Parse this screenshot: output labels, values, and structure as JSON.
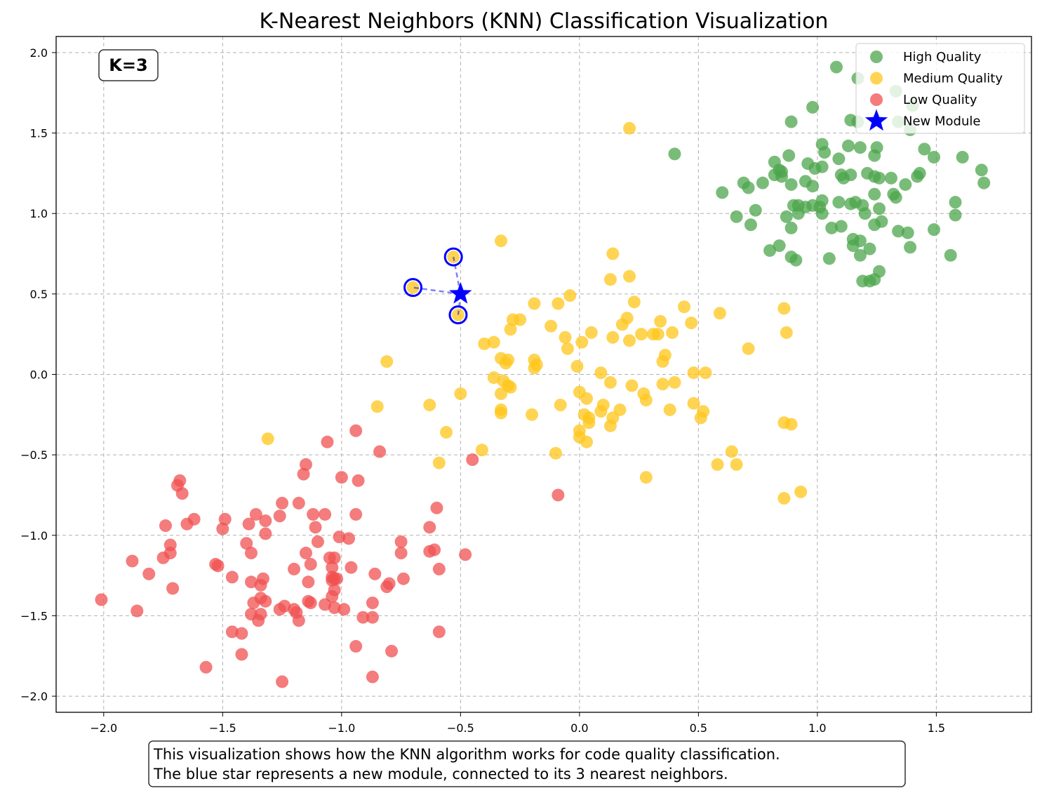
{
  "chart_data": {
    "type": "scatter",
    "title": "K-Nearest Neighbors (KNN) Classification Visualization",
    "xlabel": "",
    "ylabel": "",
    "xlim": [
      -2.2,
      1.9
    ],
    "ylim": [
      -2.1,
      2.1
    ],
    "xticks": [
      -2.0,
      -1.5,
      -1.0,
      -0.5,
      0.0,
      0.5,
      1.0,
      1.5
    ],
    "yticks": [
      -2.0,
      -1.5,
      -1.0,
      -0.5,
      0.0,
      0.5,
      1.0,
      1.5,
      2.0
    ],
    "xtick_labels": [
      "−2.0",
      "−1.5",
      "−1.0",
      "−0.5",
      "0.0",
      "0.5",
      "1.0",
      "1.5"
    ],
    "ytick_labels": [
      "−2.0",
      "−1.5",
      "−1.0",
      "−0.5",
      "0.0",
      "0.5",
      "1.0",
      "1.5",
      "2.0"
    ],
    "grid": true,
    "legend_position": "top-right",
    "k_label": "K=3",
    "caption_lines": [
      "This visualization shows how the KNN algorithm works for code quality classification.",
      "The blue star represents a new module, connected to its 3 nearest neighbors."
    ],
    "series": [
      {
        "name": "High Quality",
        "color": "#4ca64c",
        "points": [
          [
            1.08,
            1.91
          ],
          [
            1.17,
            1.84
          ],
          [
            0.98,
            1.66
          ],
          [
            1.33,
            1.76
          ],
          [
            1.4,
            1.67
          ],
          [
            1.17,
            1.57
          ],
          [
            1.25,
            1.58
          ],
          [
            1.34,
            1.57
          ],
          [
            1.39,
            1.52
          ],
          [
            0.89,
            1.57
          ],
          [
            1.14,
            1.58
          ],
          [
            0.4,
            1.37
          ],
          [
            1.02,
            1.43
          ],
          [
            1.13,
            1.42
          ],
          [
            1.18,
            1.41
          ],
          [
            1.25,
            1.41
          ],
          [
            1.03,
            1.38
          ],
          [
            0.88,
            1.36
          ],
          [
            1.24,
            1.36
          ],
          [
            1.45,
            1.4
          ],
          [
            1.49,
            1.35
          ],
          [
            1.61,
            1.35
          ],
          [
            0.82,
            1.32
          ],
          [
            0.84,
            1.27
          ],
          [
            0.96,
            1.31
          ],
          [
            0.99,
            1.28
          ],
          [
            1.02,
            1.29
          ],
          [
            1.09,
            1.34
          ],
          [
            0.85,
            1.26
          ],
          [
            1.1,
            1.24
          ],
          [
            1.11,
            1.22
          ],
          [
            1.14,
            1.24
          ],
          [
            1.21,
            1.25
          ],
          [
            1.24,
            1.23
          ],
          [
            1.26,
            1.22
          ],
          [
            1.31,
            1.22
          ],
          [
            1.42,
            1.23
          ],
          [
            1.43,
            1.25
          ],
          [
            1.69,
            1.27
          ],
          [
            0.71,
            1.16
          ],
          [
            0.77,
            1.19
          ],
          [
            0.82,
            1.24
          ],
          [
            0.85,
            1.23
          ],
          [
            0.95,
            1.2
          ],
          [
            0.98,
            1.17
          ],
          [
            1.37,
            1.18
          ],
          [
            1.7,
            1.19
          ],
          [
            0.6,
            1.13
          ],
          [
            0.69,
            1.19
          ],
          [
            0.89,
            1.18
          ],
          [
            1.24,
            1.12
          ],
          [
            1.32,
            1.12
          ],
          [
            1.33,
            1.1
          ],
          [
            1.02,
            1.08
          ],
          [
            1.09,
            1.07
          ],
          [
            1.14,
            1.06
          ],
          [
            1.16,
            1.07
          ],
          [
            1.19,
            1.05
          ],
          [
            1.58,
            1.07
          ],
          [
            0.9,
            1.05
          ],
          [
            0.92,
            1.05
          ],
          [
            0.95,
            1.04
          ],
          [
            0.98,
            1.05
          ],
          [
            1.01,
            1.04
          ],
          [
            1.26,
            1.03
          ],
          [
            0.74,
            1.02
          ],
          [
            0.87,
            0.98
          ],
          [
            0.92,
            1.0
          ],
          [
            1.02,
            1.0
          ],
          [
            1.2,
            1.0
          ],
          [
            0.66,
            0.98
          ],
          [
            1.58,
            0.99
          ],
          [
            0.72,
            0.93
          ],
          [
            1.06,
            0.91
          ],
          [
            1.1,
            0.92
          ],
          [
            1.24,
            0.93
          ],
          [
            1.27,
            0.95
          ],
          [
            0.89,
            0.91
          ],
          [
            1.34,
            0.89
          ],
          [
            1.38,
            0.88
          ],
          [
            1.49,
            0.9
          ],
          [
            1.15,
            0.84
          ],
          [
            1.18,
            0.83
          ],
          [
            1.15,
            0.8
          ],
          [
            1.22,
            0.78
          ],
          [
            1.39,
            0.79
          ],
          [
            0.84,
            0.8
          ],
          [
            0.8,
            0.77
          ],
          [
            1.18,
            0.74
          ],
          [
            0.89,
            0.73
          ],
          [
            0.91,
            0.71
          ],
          [
            1.05,
            0.72
          ],
          [
            1.56,
            0.74
          ],
          [
            1.26,
            0.64
          ],
          [
            1.19,
            0.58
          ],
          [
            1.22,
            0.58
          ],
          [
            1.24,
            0.59
          ]
        ]
      },
      {
        "name": "Medium Quality",
        "color": "#ffc61a",
        "points": [
          [
            0.21,
            1.53
          ],
          [
            -0.33,
            0.83
          ],
          [
            0.14,
            0.75
          ],
          [
            0.21,
            0.61
          ],
          [
            0.13,
            0.59
          ],
          [
            -0.04,
            0.49
          ],
          [
            -0.09,
            0.44
          ],
          [
            -0.19,
            0.44
          ],
          [
            0.23,
            0.45
          ],
          [
            0.44,
            0.42
          ],
          [
            0.86,
            0.41
          ],
          [
            0.59,
            0.38
          ],
          [
            -0.25,
            0.34
          ],
          [
            -0.28,
            0.34
          ],
          [
            -0.12,
            0.3
          ],
          [
            0.2,
            0.35
          ],
          [
            0.18,
            0.31
          ],
          [
            0.34,
            0.33
          ],
          [
            -0.29,
            0.28
          ],
          [
            0.05,
            0.26
          ],
          [
            0.26,
            0.25
          ],
          [
            0.31,
            0.25
          ],
          [
            0.33,
            0.25
          ],
          [
            0.39,
            0.26
          ],
          [
            0.47,
            0.32
          ],
          [
            0.87,
            0.26
          ],
          [
            -0.06,
            0.23
          ],
          [
            0.14,
            0.23
          ],
          [
            0.21,
            0.21
          ],
          [
            -0.4,
            0.19
          ],
          [
            -0.36,
            0.2
          ],
          [
            0.01,
            0.2
          ],
          [
            -0.05,
            0.16
          ],
          [
            0.71,
            0.16
          ],
          [
            -0.33,
            0.1
          ],
          [
            -0.3,
            0.09
          ],
          [
            -0.31,
            0.07
          ],
          [
            -0.19,
            0.09
          ],
          [
            -0.18,
            0.06
          ],
          [
            -0.19,
            0.04
          ],
          [
            0.36,
            0.12
          ],
          [
            0.35,
            0.08
          ],
          [
            -0.81,
            0.08
          ],
          [
            -0.01,
            0.05
          ],
          [
            0.48,
            0.01
          ],
          [
            0.53,
            0.01
          ],
          [
            0.09,
            0.01
          ],
          [
            -0.36,
            -0.02
          ],
          [
            -0.32,
            -0.04
          ],
          [
            -0.3,
            -0.07
          ],
          [
            -0.29,
            -0.08
          ],
          [
            0.13,
            -0.05
          ],
          [
            0.22,
            -0.07
          ],
          [
            0.35,
            -0.06
          ],
          [
            0.4,
            -0.05
          ],
          [
            -0.33,
            -0.12
          ],
          [
            -0.0,
            -0.11
          ],
          [
            0.03,
            -0.15
          ],
          [
            0.27,
            -0.12
          ],
          [
            -0.5,
            -0.12
          ],
          [
            0.28,
            -0.16
          ],
          [
            -0.63,
            -0.19
          ],
          [
            -0.85,
            -0.2
          ],
          [
            -0.33,
            -0.22
          ],
          [
            -0.33,
            -0.24
          ],
          [
            0.1,
            -0.19
          ],
          [
            0.09,
            -0.23
          ],
          [
            0.17,
            -0.22
          ],
          [
            0.04,
            -0.27
          ],
          [
            0.02,
            -0.25
          ],
          [
            0.14,
            -0.27
          ],
          [
            0.38,
            -0.22
          ],
          [
            0.48,
            -0.18
          ],
          [
            0.52,
            -0.23
          ],
          [
            0.51,
            -0.27
          ],
          [
            -0.2,
            -0.25
          ],
          [
            -0.08,
            -0.19
          ],
          [
            0.04,
            -0.3
          ],
          [
            0.13,
            -0.32
          ],
          [
            0.86,
            -0.3
          ],
          [
            0.89,
            -0.31
          ],
          [
            -0.0,
            -0.35
          ],
          [
            -0.0,
            -0.39
          ],
          [
            0.03,
            -0.42
          ],
          [
            -0.56,
            -0.36
          ],
          [
            -1.31,
            -0.4
          ],
          [
            -0.41,
            -0.47
          ],
          [
            -0.1,
            -0.49
          ],
          [
            -0.59,
            -0.55
          ],
          [
            0.58,
            -0.56
          ],
          [
            0.66,
            -0.56
          ],
          [
            0.64,
            -0.48
          ],
          [
            0.28,
            -0.64
          ],
          [
            0.93,
            -0.73
          ],
          [
            0.86,
            -0.77
          ],
          [
            -0.53,
            0.73
          ],
          [
            -0.7,
            0.54
          ],
          [
            -0.51,
            0.37
          ]
        ]
      },
      {
        "name": "Low Quality",
        "color": "#f05050",
        "points": [
          [
            -0.94,
            -0.35
          ],
          [
            -1.06,
            -0.42
          ],
          [
            -0.84,
            -0.48
          ],
          [
            -0.45,
            -0.53
          ],
          [
            -1.15,
            -0.56
          ],
          [
            -1.16,
            -0.62
          ],
          [
            -1.0,
            -0.64
          ],
          [
            -0.93,
            -0.66
          ],
          [
            -1.68,
            -0.66
          ],
          [
            -1.69,
            -0.69
          ],
          [
            -1.67,
            -0.74
          ],
          [
            -0.09,
            -0.75
          ],
          [
            -1.25,
            -0.8
          ],
          [
            -1.18,
            -0.8
          ],
          [
            -0.6,
            -0.83
          ],
          [
            -1.36,
            -0.87
          ],
          [
            -1.12,
            -0.87
          ],
          [
            -1.07,
            -0.87
          ],
          [
            -0.94,
            -0.87
          ],
          [
            -1.26,
            -0.88
          ],
          [
            -1.49,
            -0.9
          ],
          [
            -1.62,
            -0.9
          ],
          [
            -1.32,
            -0.91
          ],
          [
            -1.39,
            -0.93
          ],
          [
            -1.65,
            -0.93
          ],
          [
            -1.74,
            -0.94
          ],
          [
            -1.11,
            -0.95
          ],
          [
            -1.5,
            -0.96
          ],
          [
            -0.63,
            -0.95
          ],
          [
            -1.32,
            -0.99
          ],
          [
            -1.01,
            -1.01
          ],
          [
            -0.97,
            -1.02
          ],
          [
            -1.1,
            -1.04
          ],
          [
            -1.4,
            -1.05
          ],
          [
            -0.75,
            -1.04
          ],
          [
            -1.72,
            -1.06
          ],
          [
            -1.38,
            -1.11
          ],
          [
            -1.15,
            -1.11
          ],
          [
            -1.72,
            -1.11
          ],
          [
            -0.61,
            -1.09
          ],
          [
            -0.63,
            -1.1
          ],
          [
            -0.75,
            -1.11
          ],
          [
            -1.75,
            -1.14
          ],
          [
            -1.05,
            -1.14
          ],
          [
            -1.03,
            -1.14
          ],
          [
            -0.48,
            -1.12
          ],
          [
            -1.88,
            -1.16
          ],
          [
            -1.53,
            -1.18
          ],
          [
            -1.52,
            -1.19
          ],
          [
            -1.13,
            -1.18
          ],
          [
            -1.04,
            -1.2
          ],
          [
            -0.96,
            -1.2
          ],
          [
            -1.2,
            -1.21
          ],
          [
            -0.59,
            -1.21
          ],
          [
            -1.81,
            -1.24
          ],
          [
            -0.86,
            -1.24
          ],
          [
            -1.46,
            -1.26
          ],
          [
            -1.04,
            -1.26
          ],
          [
            -1.03,
            -1.27
          ],
          [
            -1.04,
            -1.28
          ],
          [
            -1.02,
            -1.27
          ],
          [
            -0.74,
            -1.27
          ],
          [
            -1.33,
            -1.27
          ],
          [
            -1.14,
            -1.29
          ],
          [
            -1.38,
            -1.29
          ],
          [
            -1.34,
            -1.31
          ],
          [
            -0.81,
            -1.32
          ],
          [
            -0.8,
            -1.3
          ],
          [
            -1.71,
            -1.33
          ],
          [
            -1.03,
            -1.34
          ],
          [
            -2.01,
            -1.4
          ],
          [
            -1.04,
            -1.38
          ],
          [
            -1.34,
            -1.39
          ],
          [
            -1.32,
            -1.41
          ],
          [
            -1.37,
            -1.42
          ],
          [
            -1.14,
            -1.41
          ],
          [
            -1.13,
            -1.42
          ],
          [
            -1.07,
            -1.43
          ],
          [
            -1.03,
            -1.45
          ],
          [
            -0.99,
            -1.46
          ],
          [
            -0.87,
            -1.42
          ],
          [
            -1.24,
            -1.44
          ],
          [
            -1.26,
            -1.46
          ],
          [
            -1.2,
            -1.46
          ],
          [
            -1.19,
            -1.48
          ],
          [
            -1.86,
            -1.47
          ],
          [
            -1.34,
            -1.49
          ],
          [
            -1.38,
            -1.49
          ],
          [
            -1.35,
            -1.53
          ],
          [
            -1.18,
            -1.53
          ],
          [
            -0.91,
            -1.51
          ],
          [
            -0.87,
            -1.51
          ],
          [
            -1.46,
            -1.6
          ],
          [
            -1.42,
            -1.61
          ],
          [
            -0.59,
            -1.6
          ],
          [
            -0.94,
            -1.69
          ],
          [
            -1.42,
            -1.74
          ],
          [
            -0.79,
            -1.72
          ],
          [
            -1.57,
            -1.82
          ],
          [
            -0.87,
            -1.88
          ],
          [
            -1.25,
            -1.91
          ]
        ]
      }
    ],
    "new_point": {
      "name": "New Module",
      "x": -0.5,
      "y": 0.5,
      "color": "#0000ff"
    },
    "neighbors": [
      [
        -0.53,
        0.73
      ],
      [
        -0.7,
        0.54
      ],
      [
        -0.51,
        0.37
      ]
    ]
  }
}
